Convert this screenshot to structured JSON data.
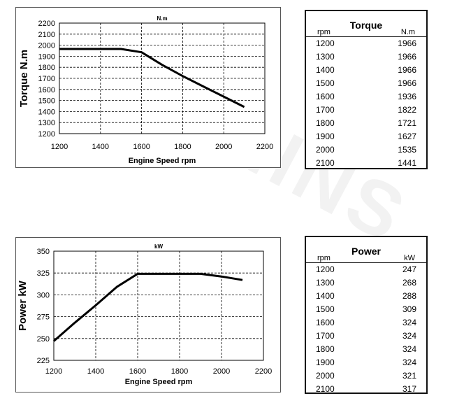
{
  "torque_table": {
    "title": "Torque",
    "col1_label": "rpm",
    "col2_label": "N.m",
    "rows": [
      {
        "rpm": "1200",
        "value": "1966"
      },
      {
        "rpm": "1300",
        "value": "1966"
      },
      {
        "rpm": "1400",
        "value": "1966"
      },
      {
        "rpm": "1500",
        "value": "1966"
      },
      {
        "rpm": "1600",
        "value": "1936"
      },
      {
        "rpm": "1700",
        "value": "1822"
      },
      {
        "rpm": "1800",
        "value": "1721"
      },
      {
        "rpm": "1900",
        "value": "1627"
      },
      {
        "rpm": "2000",
        "value": "1535"
      },
      {
        "rpm": "2100",
        "value": "1441"
      }
    ]
  },
  "power_table": {
    "title": "Power",
    "col1_label": "rpm",
    "col2_label": "kW",
    "rows": [
      {
        "rpm": "1200",
        "value": "247"
      },
      {
        "rpm": "1300",
        "value": "268"
      },
      {
        "rpm": "1400",
        "value": "288"
      },
      {
        "rpm": "1500",
        "value": "309"
      },
      {
        "rpm": "1600",
        "value": "324"
      },
      {
        "rpm": "1700",
        "value": "324"
      },
      {
        "rpm": "1800",
        "value": "324"
      },
      {
        "rpm": "1900",
        "value": "324"
      },
      {
        "rpm": "2000",
        "value": "321"
      },
      {
        "rpm": "2100",
        "value": "317"
      }
    ]
  },
  "watermark": "CUMMINS",
  "chart_data": [
    {
      "type": "line",
      "title": "N.m",
      "xlabel": "Engine Speed rpm",
      "ylabel": "Torque  N.m",
      "xlim": [
        1200,
        2200
      ],
      "ylim": [
        1200,
        2200
      ],
      "xticks": [
        1200,
        1400,
        1600,
        1800,
        2000,
        2200
      ],
      "yticks": [
        1200,
        1300,
        1400,
        1500,
        1600,
        1700,
        1800,
        1900,
        2000,
        2100,
        2200
      ],
      "grid": true,
      "x": [
        1200,
        1300,
        1400,
        1500,
        1600,
        1700,
        1800,
        1900,
        2000,
        2100
      ],
      "series": [
        {
          "values": [
            1966,
            1966,
            1966,
            1966,
            1936,
            1822,
            1721,
            1627,
            1535,
            1441
          ]
        }
      ]
    },
    {
      "type": "line",
      "title": "kW",
      "xlabel": "Engine Speed rpm",
      "ylabel": "Power kW",
      "xlim": [
        1200,
        2200
      ],
      "ylim": [
        225,
        350
      ],
      "xticks": [
        1200,
        1400,
        1600,
        1800,
        2000,
        2200
      ],
      "yticks": [
        225,
        250,
        275,
        300,
        325,
        350
      ],
      "grid": true,
      "x": [
        1200,
        1300,
        1400,
        1500,
        1600,
        1700,
        1800,
        1900,
        2000,
        2100
      ],
      "series": [
        {
          "values": [
            247,
            268,
            288,
            309,
            324,
            324,
            324,
            324,
            321,
            317
          ]
        }
      ]
    }
  ]
}
